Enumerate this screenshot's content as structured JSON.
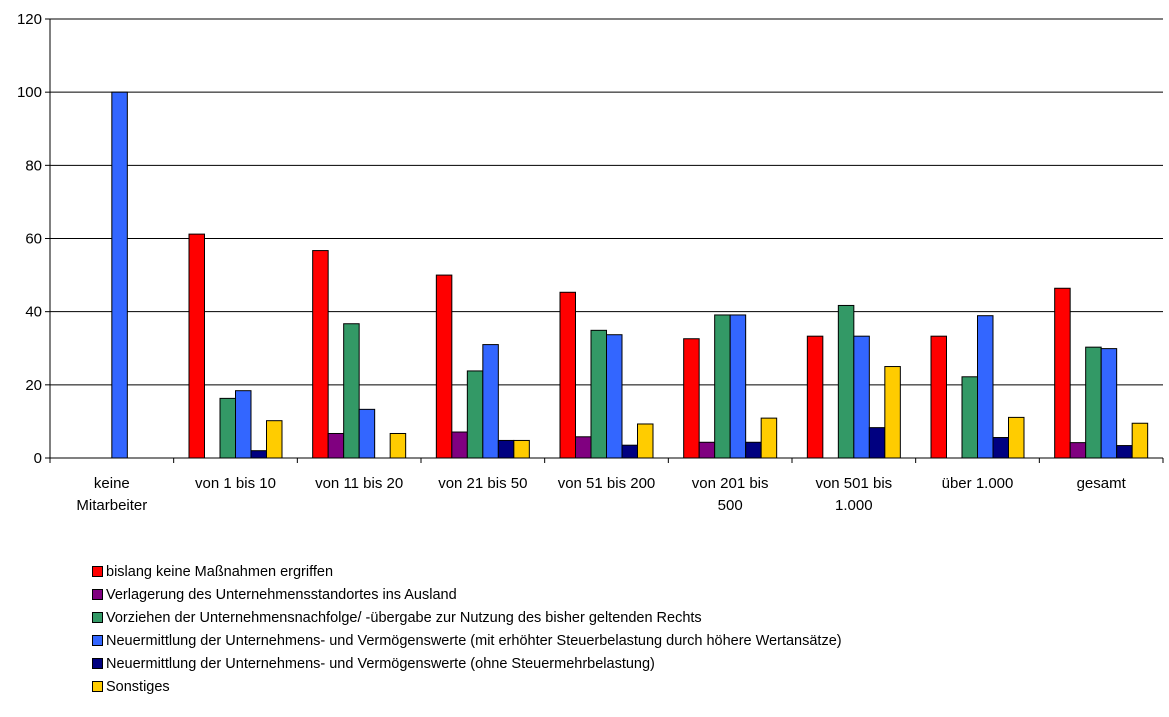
{
  "chart_data": {
    "type": "bar",
    "title": "",
    "xlabel": "",
    "ylabel": "",
    "ylim": [
      0,
      120
    ],
    "yticks": [
      0,
      20,
      40,
      60,
      80,
      100,
      120
    ],
    "grid": true,
    "legend_position": "bottom-left",
    "categories": [
      [
        "keine",
        "Mitarbeiter"
      ],
      [
        "von 1 bis 10"
      ],
      [
        "von 11 bis 20"
      ],
      [
        "von 21 bis 50"
      ],
      [
        "von 51 bis 200"
      ],
      [
        "von 201 bis",
        "500"
      ],
      [
        "von 501 bis",
        "1.000"
      ],
      [
        "über 1.000"
      ],
      [
        "gesamt"
      ]
    ],
    "series": [
      {
        "name": "bislang keine Maßnahmen ergriffen",
        "color": "#ff0000",
        "values": [
          0,
          61.2,
          56.7,
          50.0,
          45.3,
          32.6,
          33.3,
          33.3,
          46.4
        ]
      },
      {
        "name": "Verlagerung des Unternehmensstandortes ins Ausland",
        "color": "#800080",
        "values": [
          0,
          0,
          6.7,
          7.1,
          5.8,
          4.3,
          0,
          0,
          4.2
        ]
      },
      {
        "name": "Vorziehen der Unternehmensnachfolge/ -übergabe zur Nutzung des bisher geltenden Rechts",
        "color": "#339966",
        "values": [
          0,
          16.3,
          36.7,
          23.8,
          34.9,
          39.1,
          41.7,
          22.2,
          30.3
        ]
      },
      {
        "name": "Neuermittlung der Unternehmens- und Vermögenswerte (mit erhöhter Steuerbelastung durch höhere Wertansätze)",
        "color": "#3366ff",
        "values": [
          100,
          18.4,
          13.3,
          31.0,
          33.7,
          39.1,
          33.3,
          38.9,
          29.9
        ]
      },
      {
        "name": "Neuermittlung der Unternehmens- und Vermögenswerte (ohne Steuermehrbelastung)",
        "color": "#000080",
        "values": [
          0,
          2.0,
          0,
          4.8,
          3.5,
          4.3,
          8.3,
          5.6,
          3.4
        ]
      },
      {
        "name": "Sonstiges",
        "color": "#ffcc00",
        "values": [
          0,
          10.2,
          6.7,
          4.8,
          9.3,
          10.9,
          25.0,
          11.1,
          9.5
        ]
      }
    ]
  }
}
